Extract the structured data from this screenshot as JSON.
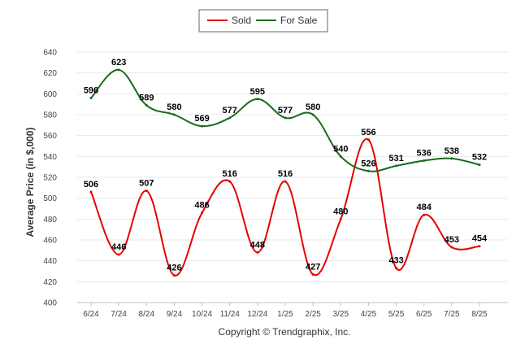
{
  "chart_data": {
    "type": "line",
    "categories": [
      "6/24",
      "7/24",
      "8/24",
      "9/24",
      "10/24",
      "11/24",
      "12/24",
      "1/25",
      "2/25",
      "3/25",
      "4/25",
      "5/25",
      "6/25",
      "7/25",
      "8/25"
    ],
    "series": [
      {
        "name": "Sold",
        "color": "#e60000",
        "values": [
          506,
          446,
          507,
          426,
          486,
          516,
          448,
          516,
          427,
          480,
          556,
          433,
          484,
          453,
          454
        ]
      },
      {
        "name": "For Sale",
        "color": "#1a6b1a",
        "values": [
          596,
          623,
          589,
          580,
          569,
          577,
          595,
          577,
          580,
          540,
          526,
          531,
          536,
          538,
          532
        ]
      }
    ],
    "ylabel": "Average Price (in $,000)",
    "xlabel": "",
    "ylim": [
      400,
      640
    ],
    "yticks": [
      400,
      420,
      440,
      460,
      480,
      500,
      520,
      540,
      560,
      580,
      600,
      620,
      640
    ],
    "grid": true,
    "legend_position": "top-center",
    "footer": "Copyright © Trendgraphix, Inc."
  }
}
